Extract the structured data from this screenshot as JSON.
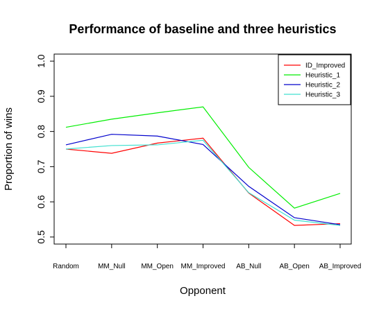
{
  "chart_data": {
    "type": "line",
    "title": "Performance of baseline and three heuristics",
    "xlabel": "Opponent",
    "ylabel": "Proportion of wins",
    "categories": [
      "Random",
      "MM_Null",
      "MM_Open",
      "MM_Improved",
      "AB_Null",
      "AB_Open",
      "AB_Improved"
    ],
    "ylim": [
      0.48,
      1.02
    ],
    "yticks": [
      0.5,
      0.6,
      0.7,
      0.8,
      0.9,
      1.0
    ],
    "ytick_labels": [
      "0.5",
      "0.6",
      "0.7",
      "0.8",
      "0.9",
      "1.0"
    ],
    "grid": false,
    "legend_position": "top-right",
    "series": [
      {
        "name": "ID_Improved",
        "color": "#ff0000",
        "values": [
          0.75,
          0.738,
          0.767,
          0.781,
          0.625,
          0.533,
          0.538
        ]
      },
      {
        "name": "Heuristic_1",
        "color": "#00ee00",
        "values": [
          0.812,
          0.835,
          0.853,
          0.87,
          0.698,
          0.582,
          0.624
        ]
      },
      {
        "name": "Heuristic_2",
        "color": "#0000cc",
        "values": [
          0.762,
          0.792,
          0.787,
          0.763,
          0.644,
          0.555,
          0.535
        ]
      },
      {
        "name": "Heuristic_3",
        "color": "#40e0d0",
        "values": [
          0.75,
          0.76,
          0.762,
          0.775,
          0.626,
          0.548,
          0.533
        ]
      }
    ]
  }
}
